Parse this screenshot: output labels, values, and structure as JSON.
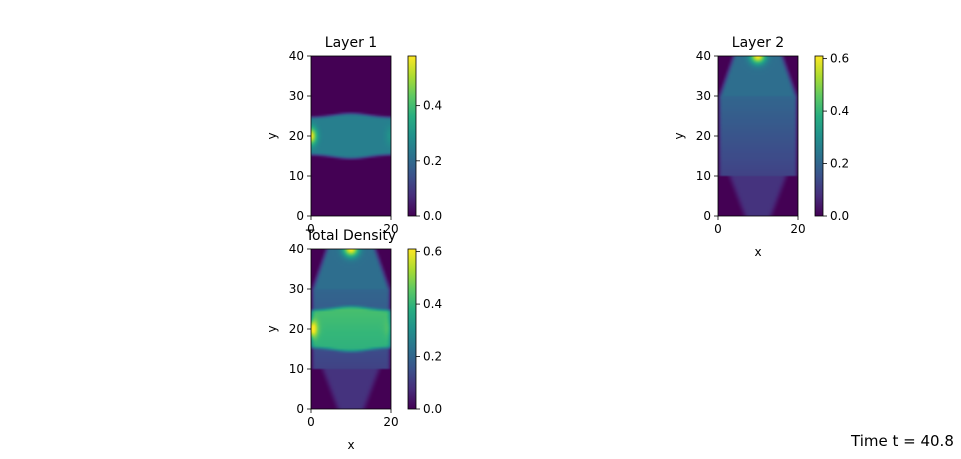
{
  "chart_data": [
    {
      "type": "heatmap",
      "title": "Layer 1",
      "xlabel": "",
      "ylabel": "y",
      "xlim": [
        0,
        20
      ],
      "ylim": [
        0,
        40
      ],
      "xticks": [
        0,
        20
      ],
      "yticks": [
        0,
        10,
        20,
        30,
        40
      ],
      "colormap": "viridis",
      "colorbar": {
        "range": [
          0,
          0.58
        ],
        "ticks": [
          "0.0",
          "0.2",
          "0.4"
        ]
      },
      "field": "horizontal band centred at y=20 spanning x=0..20, peak ~0.58 at left edge (x=0,y=20)"
    },
    {
      "type": "heatmap",
      "title": "Layer 2",
      "xlabel": "x",
      "ylabel": "y",
      "xlim": [
        0,
        20
      ],
      "ylim": [
        0,
        40
      ],
      "xticks": [
        0,
        20
      ],
      "yticks": [
        0,
        10,
        20,
        30,
        40
      ],
      "colormap": "viridis",
      "colorbar": {
        "range": [
          0,
          0.61
        ],
        "ticks": [
          "0.0",
          "0.2",
          "0.4",
          "0.6"
        ]
      },
      "field": "vertical plume along x=10, peak ~0.61 at top (y=40)"
    },
    {
      "type": "heatmap",
      "title": "Total Density",
      "xlabel": "x",
      "ylabel": "y",
      "xlim": [
        0,
        20
      ],
      "ylim": [
        0,
        40
      ],
      "xticks": [
        0,
        20
      ],
      "yticks": [
        0,
        10,
        20,
        30,
        40
      ],
      "colormap": "viridis",
      "colorbar": {
        "range": [
          0,
          0.61
        ],
        "ticks": [
          "0.0",
          "0.2",
          "0.4",
          "0.6"
        ]
      },
      "field": "sum of Layer 1 and Layer 2"
    }
  ],
  "time_label": "Time t = 40.8"
}
